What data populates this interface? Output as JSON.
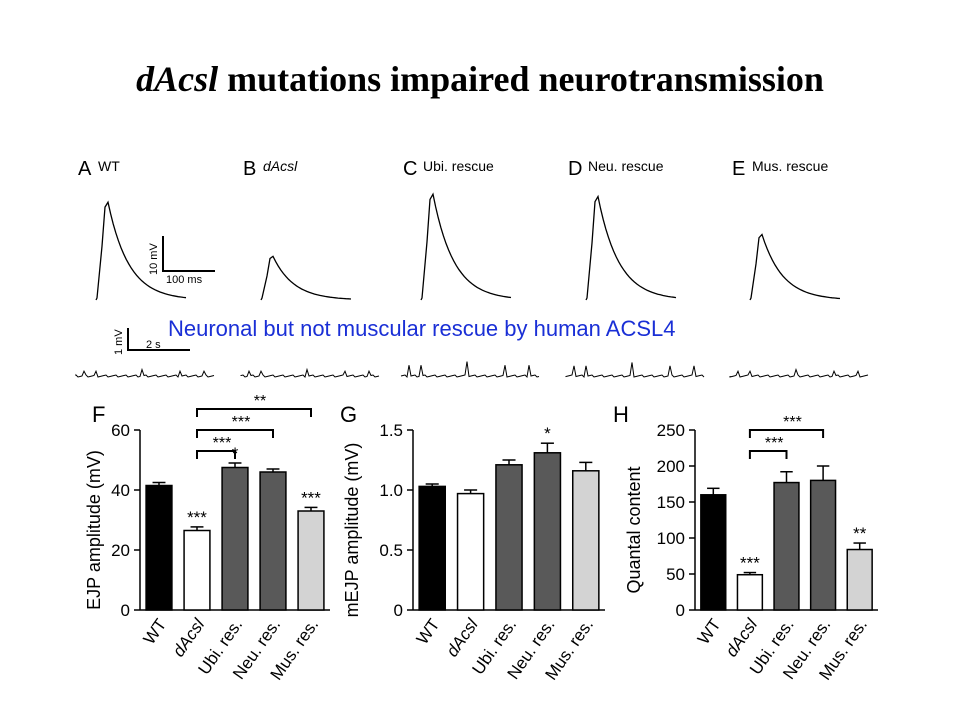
{
  "slide": {
    "title_italic": "dAcsl",
    "title_rest": " mutations impaired neurotransmission",
    "overlay_caption": "Neuronal but not muscular rescue by human ACSL4",
    "caption_color": "#1a2fd6"
  },
  "traces": {
    "panels": [
      {
        "letter": "A",
        "label": "WT",
        "italic": false,
        "peak": 0.85
      },
      {
        "letter": "B",
        "label": "dAcsl",
        "italic": true,
        "peak": 0.38
      },
      {
        "letter": "C",
        "label": "Ubi. rescue",
        "italic": false,
        "peak": 0.92
      },
      {
        "letter": "D",
        "label": "Neu. rescue",
        "italic": false,
        "peak": 0.9
      },
      {
        "letter": "E",
        "label": "Mus. rescue",
        "italic": false,
        "peak": 0.57
      }
    ],
    "scale_bar_y": "10 mV",
    "scale_bar_x": "100 ms",
    "mini_scale_y": "1 mV",
    "mini_scale_x": "2 s"
  },
  "chart_data": [
    {
      "type": "bar",
      "panel": "F",
      "ylabel": "EJP amplitude (mV)",
      "ylim": [
        0,
        60
      ],
      "yticks": [
        0,
        20,
        40,
        60
      ],
      "categories": [
        "WT",
        "dAcsl",
        "Ubi. res.",
        "Neu. res.",
        "Mus. res."
      ],
      "category_italic": [
        false,
        true,
        false,
        false,
        false
      ],
      "values": [
        41.5,
        26.5,
        47.5,
        46,
        33
      ],
      "errors": [
        1,
        1.2,
        1.5,
        1,
        1.2
      ],
      "colors": [
        "#000000",
        "#ffffff",
        "#595959",
        "#595959",
        "#d3d3d3"
      ],
      "bar_labels": [
        "",
        "***",
        "*",
        "",
        "***"
      ],
      "brackets": [
        {
          "from": 1,
          "to": 2,
          "label": "***"
        },
        {
          "from": 1,
          "to": 3,
          "label": "***"
        },
        {
          "from": 1,
          "to": 4,
          "label": "**"
        }
      ]
    },
    {
      "type": "bar",
      "panel": "G",
      "ylabel": "mEJP amplitude (mV)",
      "ylim": [
        0,
        1.5
      ],
      "yticks": [
        0,
        0.5,
        1.0,
        1.5
      ],
      "categories": [
        "WT",
        "dAcsl",
        "Ubi. res.",
        "Neu. res.",
        "Mus. res."
      ],
      "category_italic": [
        false,
        true,
        false,
        false,
        false
      ],
      "values": [
        1.03,
        0.97,
        1.21,
        1.31,
        1.16
      ],
      "errors": [
        0.02,
        0.03,
        0.04,
        0.08,
        0.07
      ],
      "colors": [
        "#000000",
        "#ffffff",
        "#595959",
        "#595959",
        "#d3d3d3"
      ],
      "bar_labels": [
        "",
        "",
        "",
        "*",
        ""
      ],
      "brackets": []
    },
    {
      "type": "bar",
      "panel": "H",
      "ylabel": "Quantal content",
      "ylim": [
        0,
        250
      ],
      "yticks": [
        0,
        50,
        100,
        150,
        200,
        250
      ],
      "categories": [
        "WT",
        "dAcsl",
        "Ubi. res.",
        "Neu. res.",
        "Mus. res."
      ],
      "category_italic": [
        false,
        true,
        false,
        false,
        false
      ],
      "values": [
        160,
        49,
        177,
        180,
        84
      ],
      "errors": [
        9,
        3,
        15,
        20,
        9
      ],
      "colors": [
        "#000000",
        "#ffffff",
        "#595959",
        "#595959",
        "#d3d3d3"
      ],
      "bar_labels": [
        "",
        "***",
        "",
        "",
        "**"
      ],
      "brackets": [
        {
          "from": 1,
          "to": 2,
          "label": "***"
        },
        {
          "from": 1,
          "to": 3,
          "label": "***"
        }
      ]
    }
  ]
}
